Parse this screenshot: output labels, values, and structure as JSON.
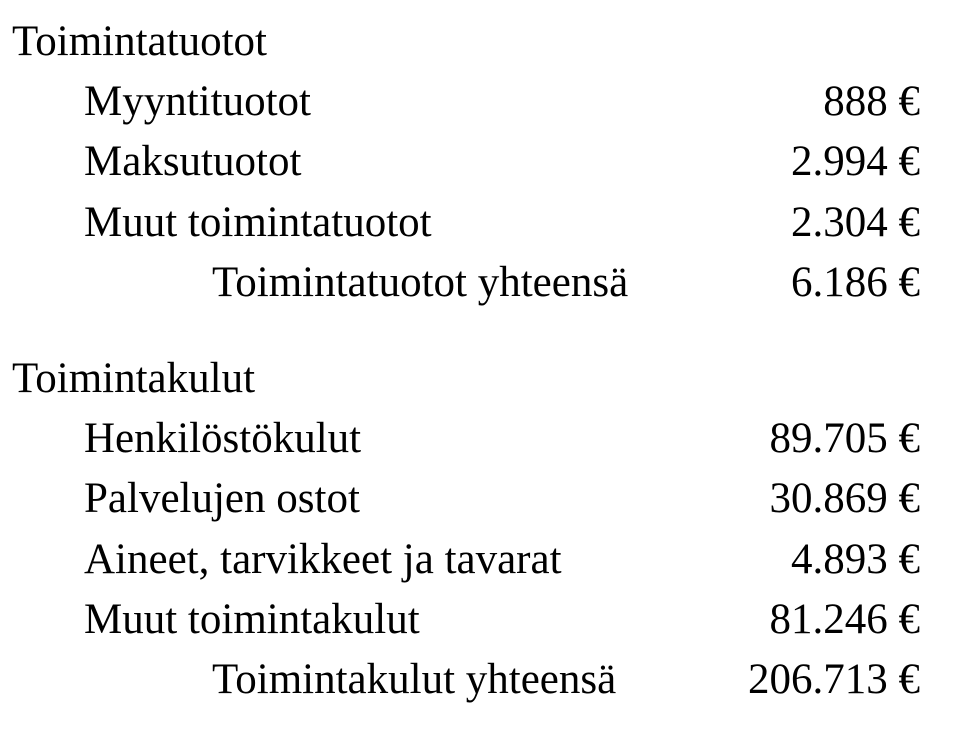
{
  "income": {
    "heading": "Toimintatuotot",
    "rows": [
      {
        "label": "Myyntituotot",
        "value": "888 €"
      },
      {
        "label": "Maksutuotot",
        "value": "2.994 €"
      },
      {
        "label": "Muut toimintatuotot",
        "value": "2.304 €"
      }
    ],
    "total": {
      "label": "Toimintatuotot yhteensä",
      "value": "6.186 €"
    }
  },
  "expenses": {
    "heading": "Toimintakulut",
    "rows": [
      {
        "label": "Henkilöstökulut",
        "value": "89.705 €"
      },
      {
        "label": "Palvelujen ostot",
        "value": "30.869 €"
      },
      {
        "label": "Aineet, tarvikkeet ja tavarat",
        "value": "4.893 €"
      },
      {
        "label": "Muut toimintakulut",
        "value": "81.246 €"
      }
    ],
    "total": {
      "label": "Toimintakulut yhteensä",
      "value": "206.713 €"
    }
  }
}
